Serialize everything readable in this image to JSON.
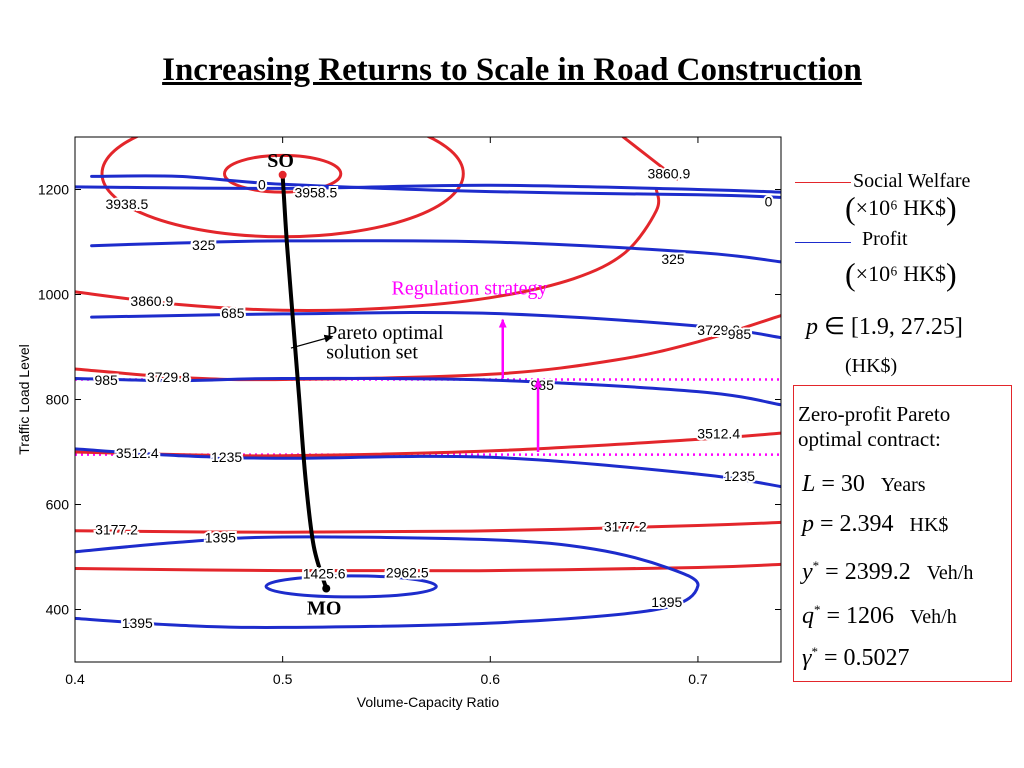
{
  "slide": {
    "title": "Increasing Returns to Scale in Road Construction"
  },
  "legend": {
    "items": [
      {
        "label": "Social Welfare",
        "color": "#e3262b",
        "unit": "×10⁶ HK$"
      },
      {
        "label": "Profit",
        "color": "#1d2ccc",
        "unit": "×10⁶ HK$"
      }
    ]
  },
  "price_range": {
    "symbol": "p",
    "range_text": "[1.9, 27.25]",
    "unit": "(HK$)"
  },
  "contract": {
    "title_line1": "Zero-profit Pareto",
    "title_line2": "optimal contract:",
    "rows": [
      {
        "lhs": "L",
        "sup": "",
        "value": "= 30",
        "unit": "Years"
      },
      {
        "lhs": "p",
        "sup": "",
        "value": "= 2.394",
        "unit": "HK$"
      },
      {
        "lhs": "y",
        "sup": "*",
        "value": "= 2399.2",
        "unit": "Veh/h"
      },
      {
        "lhs": "q",
        "sup": "*",
        "value": "= 1206",
        "unit": "Veh/h"
      },
      {
        "lhs": "γ",
        "sup": "*",
        "value": "= 0.5027",
        "unit": ""
      }
    ]
  },
  "chart_data": {
    "type": "contour",
    "title": "",
    "xlabel": "Volume-Capacity Ratio",
    "ylabel": "Traffic Load Level",
    "xlim": [
      0.4,
      0.74
    ],
    "ylim": [
      300,
      1300
    ],
    "xticks": [
      0.4,
      0.5,
      0.6,
      0.7
    ],
    "xtick_labels": [
      "0.4",
      "0.5",
      "0.6",
      "0.7"
    ],
    "yticks": [
      400,
      600,
      800,
      1000,
      1200
    ],
    "ytick_labels": [
      "400",
      "600",
      "800",
      "1000",
      "1200"
    ],
    "grid": false,
    "series": [
      {
        "name": "Social Welfare",
        "color": "#e3262b",
        "contours": [
          {
            "label": "3958.5",
            "kind": "ellipse",
            "center": [
              0.5,
              1230
            ],
            "rx": 0.028,
            "ry": 35,
            "label_at": [
              0.516,
              1192
            ]
          },
          {
            "label": "3938.5",
            "kind": "ellipse",
            "center": [
              0.5,
              1230
            ],
            "rx": 0.087,
            "ry": 120,
            "label_at": [
              0.425,
              1170
            ]
          },
          {
            "label": "3860.9",
            "kind": "curve",
            "points": [
              [
                0.4,
                1005
              ],
              [
                0.45,
                981
              ],
              [
                0.5,
                970
              ],
              [
                0.55,
                974
              ],
              [
                0.6,
                994
              ],
              [
                0.64,
                1030
              ],
              [
                0.665,
                1080
              ],
              [
                0.68,
                1160
              ],
              [
                0.68,
                1200
              ]
            ],
            "label_at": [
              0.437,
              985
            ]
          },
          {
            "label": "3860.9",
            "kind": "curve",
            "points": [
              [
                0.664,
                1300
              ],
              [
                0.69,
                1220
              ]
            ],
            "label_at": [
              0.686,
              1228
            ]
          },
          {
            "label": "3729.8",
            "kind": "curve",
            "points": [
              [
                0.4,
                858
              ],
              [
                0.45,
                842
              ],
              [
                0.5,
                838
              ],
              [
                0.6,
                848
              ],
              [
                0.66,
                875
              ],
              [
                0.7,
                910
              ],
              [
                0.74,
                960
              ]
            ],
            "label_at": [
              0.445,
              840
            ]
          },
          {
            "label": "3729.8",
            "kind": "label_only",
            "label_at": [
              0.71,
              930
            ]
          },
          {
            "label": "3512.4",
            "kind": "curve",
            "points": [
              [
                0.4,
                700
              ],
              [
                0.45,
                695
              ],
              [
                0.5,
                693
              ],
              [
                0.6,
                702
              ],
              [
                0.7,
                724
              ],
              [
                0.74,
                736
              ]
            ],
            "label_at": [
              0.43,
              696
            ]
          },
          {
            "label": "3512.4",
            "kind": "label_only",
            "label_at": [
              0.71,
              733
            ]
          },
          {
            "label": "3177.2",
            "kind": "curve",
            "points": [
              [
                0.4,
                550
              ],
              [
                0.5,
                547
              ],
              [
                0.6,
                550
              ],
              [
                0.7,
                560
              ],
              [
                0.74,
                566
              ]
            ],
            "label_at": [
              0.42,
              550
            ]
          },
          {
            "label": "3177.2",
            "kind": "label_only",
            "label_at": [
              0.665,
              556
            ]
          },
          {
            "label": "2962.5",
            "kind": "curve",
            "points": [
              [
                0.4,
                478
              ],
              [
                0.5,
                474
              ],
              [
                0.6,
                474
              ],
              [
                0.7,
                480
              ],
              [
                0.74,
                486
              ]
            ],
            "label_at": [
              0.56,
              468
            ]
          }
        ]
      },
      {
        "name": "Profit",
        "color": "#1d2ccc",
        "contours": [
          {
            "label": "0",
            "kind": "curve",
            "points": [
              [
                0.408,
                1225
              ],
              [
                0.45,
                1225
              ],
              [
                0.5,
                1210
              ],
              [
                0.6,
                1196
              ],
              [
                0.7,
                1190
              ],
              [
                0.74,
                1185
              ]
            ],
            "label_at": [
              0.49,
              1207
            ]
          },
          {
            "label": "0",
            "kind": "curve",
            "points": [
              [
                0.4,
                1205
              ],
              [
                0.5,
                1202
              ],
              [
                0.6,
                1208
              ],
              [
                0.7,
                1200
              ],
              [
                0.74,
                1195
              ]
            ],
            "label_at": [
              0.734,
              1175
            ]
          },
          {
            "label": "325",
            "kind": "curve",
            "points": [
              [
                0.408,
                1093
              ],
              [
                0.45,
                1098
              ],
              [
                0.5,
                1102
              ],
              [
                0.6,
                1100
              ],
              [
                0.7,
                1080
              ],
              [
                0.74,
                1062
              ]
            ],
            "label_at": [
              0.462,
              1092
            ]
          },
          {
            "label": "325",
            "kind": "label_only",
            "label_at": [
              0.688,
              1065
            ]
          },
          {
            "label": "685",
            "kind": "curve",
            "points": [
              [
                0.408,
                957
              ],
              [
                0.5,
                963
              ],
              [
                0.6,
                964
              ],
              [
                0.7,
                940
              ],
              [
                0.74,
                918
              ]
            ],
            "label_at": [
              0.476,
              962
            ]
          },
          {
            "label": "685",
            "kind": "label_only",
            "label_at": [
              0.72,
              920
            ]
          },
          {
            "label": "985",
            "kind": "curve",
            "points": [
              [
                0.4,
                840
              ],
              [
                0.45,
                836
              ],
              [
                0.5,
                840
              ],
              [
                0.6,
                837
              ],
              [
                0.7,
                815
              ],
              [
                0.74,
                790
              ]
            ],
            "label_at": [
              0.415,
              835
            ]
          },
          {
            "label": "985",
            "kind": "label_only",
            "label_at": [
              0.625,
              825
            ]
          },
          {
            "label": "985",
            "kind": "label_only",
            "label_at": [
              0.72,
              922
            ]
          },
          {
            "label": "1235",
            "kind": "curve",
            "points": [
              [
                0.4,
                706
              ],
              [
                0.45,
                693
              ],
              [
                0.5,
                688
              ],
              [
                0.6,
                690
              ],
              [
                0.7,
                658
              ],
              [
                0.74,
                634
              ]
            ],
            "label_at": [
              0.473,
              688
            ]
          },
          {
            "label": "1235",
            "kind": "label_only",
            "label_at": [
              0.72,
              652
            ]
          },
          {
            "label": "1395",
            "kind": "curve",
            "points": [
              [
                0.4,
                510
              ],
              [
                0.45,
                528
              ],
              [
                0.5,
                538
              ],
              [
                0.6,
                533
              ],
              [
                0.65,
                515
              ],
              [
                0.685,
                480
              ],
              [
                0.7,
                445
              ],
              [
                0.68,
                400
              ],
              [
                0.6,
                374
              ],
              [
                0.5,
                366
              ],
              [
                0.45,
                370
              ],
              [
                0.4,
                383
              ]
            ],
            "label_at": [
              0.47,
              535
            ]
          },
          {
            "label": "1395",
            "kind": "label_only",
            "label_at": [
              0.43,
              372
            ]
          },
          {
            "label": "1395",
            "kind": "label_only",
            "label_at": [
              0.685,
              412
            ]
          },
          {
            "label": "1425.6",
            "kind": "ellipse",
            "center": [
              0.533,
              444
            ],
            "rx": 0.041,
            "ry": 20,
            "label_at": [
              0.52,
              466
            ]
          }
        ]
      },
      {
        "name": "Pareto optimal solution set",
        "color": "#000000",
        "contours": [
          {
            "label": "",
            "kind": "curve",
            "points": [
              [
                0.5,
                1228
              ],
              [
                0.502,
                1100
              ],
              [
                0.505,
                950
              ],
              [
                0.508,
                800
              ],
              [
                0.511,
                650
              ],
              [
                0.515,
                520
              ],
              [
                0.521,
                440
              ]
            ]
          }
        ]
      }
    ],
    "points": [
      {
        "label": "SO",
        "x": 0.5,
        "y": 1228,
        "color": "#e3262b"
      },
      {
        "label": "MO",
        "x": 0.521,
        "y": 440,
        "color": "#000000"
      }
    ],
    "reference_lines": [
      {
        "y": 838,
        "color": "#ff00ff",
        "style": "dotted"
      },
      {
        "y": 695,
        "color": "#ff00ff",
        "style": "dotted"
      }
    ],
    "annotations": [
      {
        "text": "Regulation strategy",
        "x": 0.59,
        "y": 1000,
        "color": "#ff00ff"
      },
      {
        "text": "Pareto optimal",
        "x": 0.521,
        "y": 915,
        "color": "#000000"
      },
      {
        "text": "solution set",
        "x": 0.521,
        "y": 878,
        "color": "#000000"
      }
    ],
    "arrows": [
      {
        "from": [
          0.606,
          840
        ],
        "to": [
          0.606,
          952
        ],
        "color": "#ff00ff"
      },
      {
        "from": [
          0.623,
          700
        ],
        "to": [
          0.623,
          838
        ],
        "color": "#ff00ff"
      },
      {
        "from": [
          0.504,
          898
        ],
        "to": [
          0.524,
          920
        ],
        "color": "#000000"
      }
    ]
  }
}
